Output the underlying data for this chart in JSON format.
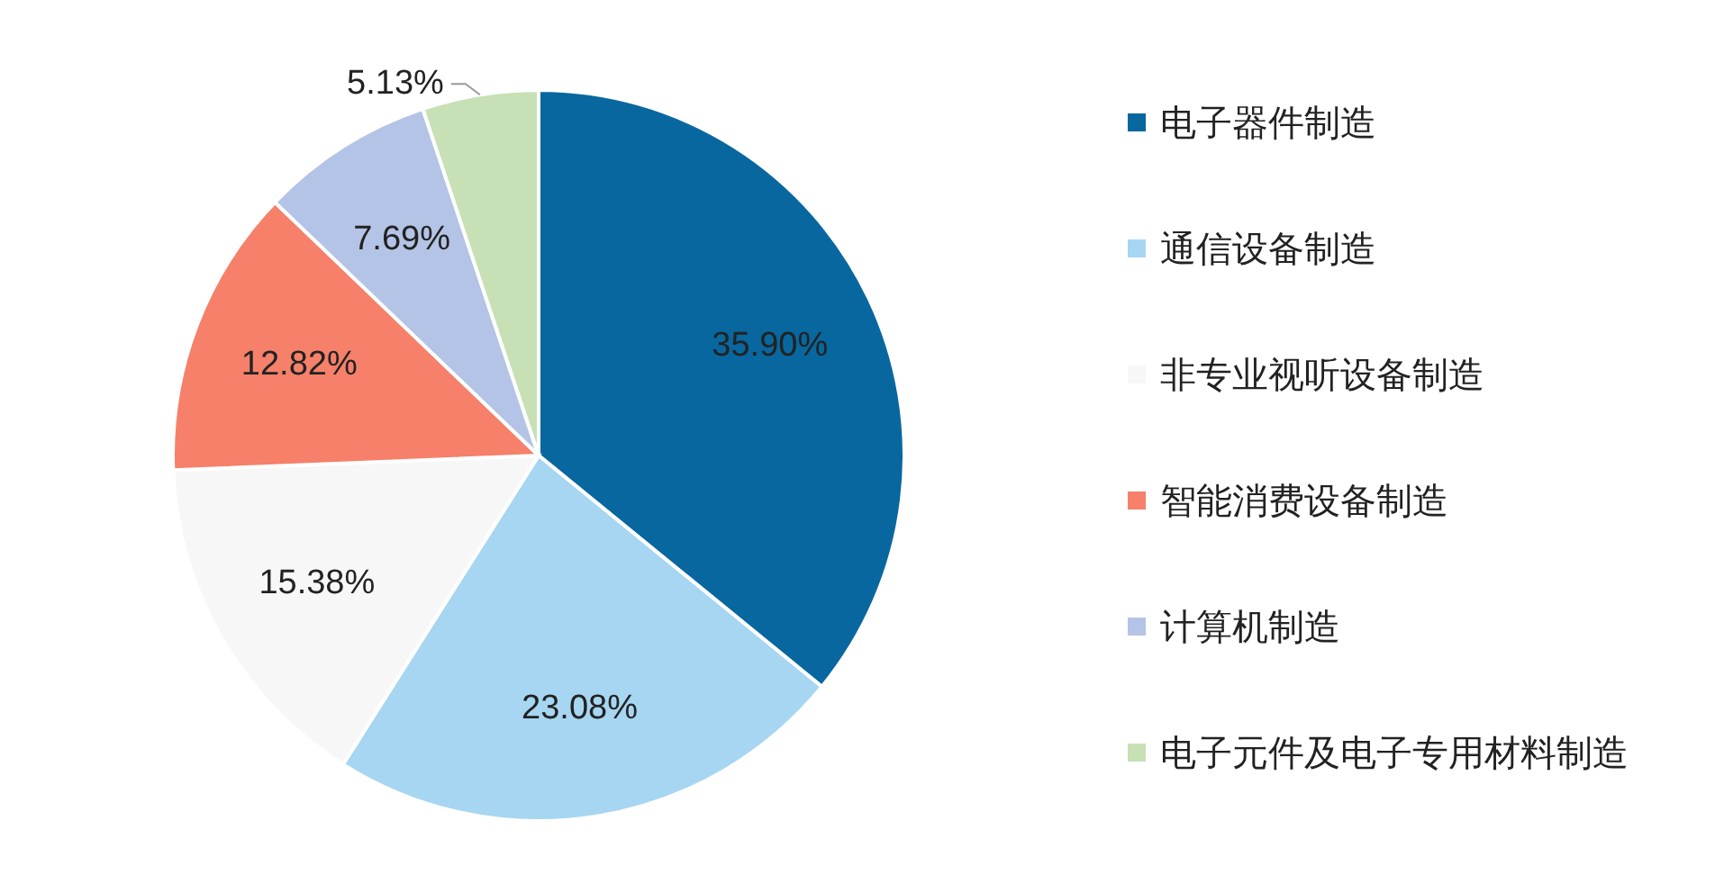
{
  "chart_data": {
    "type": "pie",
    "categories": [
      "电子器件制造",
      "通信设备制造",
      "非专业视听设备制造",
      "智能消费设备制造",
      "计算机制造",
      "电子元件及电子专用材料制造"
    ],
    "values": [
      35.9,
      23.08,
      15.38,
      12.82,
      7.69,
      5.13
    ],
    "value_labels": [
      "35.90%",
      "23.08%",
      "15.38%",
      "12.82%",
      "7.69%",
      "5.13%"
    ],
    "colors": [
      "#08679f",
      "#a6d6f1",
      "#f7f7f7",
      "#f6806a",
      "#b4c4e6",
      "#c7e0b5"
    ],
    "legend": "right"
  }
}
